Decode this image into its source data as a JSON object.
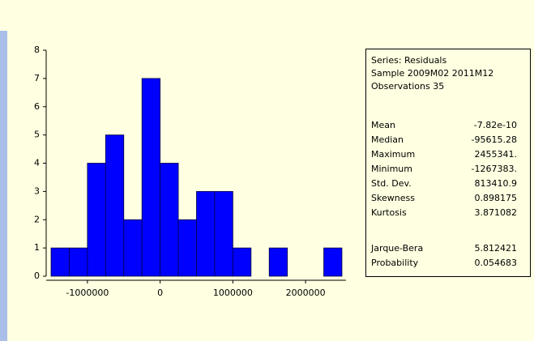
{
  "chart_data": {
    "type": "histogram",
    "bins": [
      -1500000,
      -1250000,
      -1000000,
      -750000,
      -500000,
      -250000,
      0,
      250000,
      500000,
      750000,
      1000000,
      1250000,
      1500000,
      1750000,
      2000000,
      2250000,
      2500000
    ],
    "values": [
      1,
      1,
      4,
      5,
      2,
      7,
      4,
      2,
      3,
      3,
      1,
      0,
      1,
      0,
      0,
      1
    ],
    "color": "#0000ff",
    "xlim": [
      -1567000,
      2556000
    ],
    "xticks": [
      -1000000,
      0,
      1000000,
      2000000
    ],
    "ylim": [
      0,
      8
    ],
    "yticks": [
      0,
      1,
      2,
      3,
      4,
      5,
      6,
      7,
      8
    ]
  },
  "stats": {
    "header": [
      "Series: Residuals",
      "Sample 2009M02 2011M12",
      "Observations 35"
    ],
    "rows": [
      [
        "Mean",
        "-7.82e-10"
      ],
      [
        "Median",
        "-95615.28"
      ],
      [
        "Maximum",
        "2455341."
      ],
      [
        "Minimum",
        "-1267383."
      ],
      [
        "Std. Dev.",
        "813410.9"
      ],
      [
        "Skewness",
        "0.898175"
      ],
      [
        "Kurtosis",
        "3.871082"
      ]
    ],
    "test_rows": [
      [
        "Jarque-Bera",
        "5.812421"
      ],
      [
        "Probability",
        "0.054683"
      ]
    ]
  }
}
